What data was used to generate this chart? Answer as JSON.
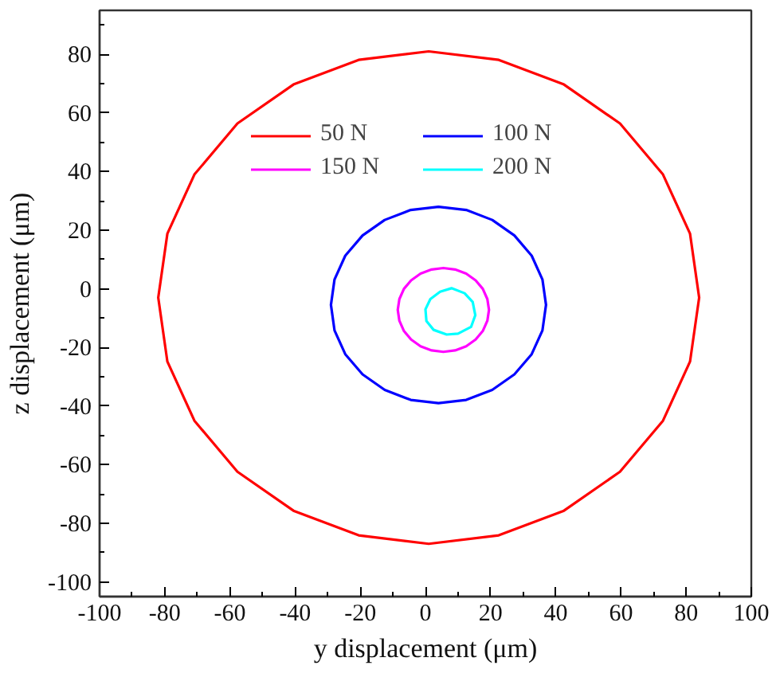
{
  "chart_data": {
    "type": "line",
    "xlabel": "y displacement (μm)",
    "ylabel": "z displacement (μm)",
    "xlim": [
      -100,
      100
    ],
    "ylim": [
      -105,
      95
    ],
    "xticks": [
      -100,
      {
        "value": -90,
        "label": null
      },
      -80,
      {
        "value": -70,
        "label": null
      },
      -60,
      {
        "value": -50,
        "label": null
      },
      -40,
      {
        "value": -30,
        "label": null
      },
      -20,
      {
        "value": -10,
        "label": null
      },
      0,
      {
        "value": 10,
        "label": null
      },
      20,
      {
        "value": 30,
        "label": null
      },
      40,
      {
        "value": 50,
        "label": null
      },
      60,
      {
        "value": 70,
        "label": null
      },
      80,
      {
        "value": 90,
        "label": null
      },
      100
    ],
    "yticks": [
      -100,
      {
        "value": -90,
        "label": null
      },
      -80,
      {
        "value": -70,
        "label": null
      },
      -60,
      {
        "value": -50,
        "label": null
      },
      -40,
      {
        "value": -30,
        "label": null
      },
      -20,
      {
        "value": -10,
        "label": null
      },
      0,
      {
        "value": 10,
        "label": null
      },
      20,
      {
        "value": 30,
        "label": null
      },
      40,
      {
        "value": 50,
        "label": null
      },
      60,
      {
        "value": 70,
        "label": null
      },
      80,
      {
        "value": 90,
        "label": null
      }
    ],
    "grid": false,
    "legend": "top",
    "line_style": "solid",
    "marker": "none",
    "series": [
      {
        "name": "50 N",
        "color": "#ff0000",
        "x": [
          84,
          81.2,
          72.9,
          59.7,
          42.5,
          22.5,
          1,
          -20.5,
          -40.5,
          -57.7,
          -70.9,
          -79.2,
          -82,
          -79.2,
          -70.9,
          -57.7,
          -40.5,
          -20.5,
          1,
          22.5,
          42.5,
          59.7,
          72.9,
          81.2,
          84,
          81.2
        ],
        "values": [
          -3,
          18.8,
          39,
          56.4,
          69.7,
          78.1,
          81,
          78.1,
          69.7,
          56.4,
          39,
          18.8,
          -3,
          -24.8,
          -45,
          -62.4,
          -75.7,
          -84.1,
          -87,
          -84.1,
          -75.7,
          -62.4,
          -45,
          -24.8,
          -3,
          18.8
        ]
      },
      {
        "name": "100 N",
        "color": "#0000ff",
        "x": [
          37,
          35.9,
          32.6,
          27.3,
          20.5,
          12.5,
          4,
          -4.5,
          -12.5,
          -19.3,
          -24.6,
          -27.9,
          -29,
          -27.9,
          -24.6,
          -19.3,
          -12.5,
          -4.5,
          4,
          12.5,
          20.5,
          27.3,
          32.6,
          35.9,
          37,
          35.9
        ],
        "values": [
          -5.5,
          3.2,
          11.3,
          18.2,
          23.5,
          26.9,
          28,
          26.9,
          23.5,
          18.2,
          11.3,
          3.2,
          -5.5,
          -14.2,
          -22.3,
          -29.2,
          -34.5,
          -37.9,
          -39,
          -37.9,
          -34.5,
          -29.2,
          -22.3,
          -14.2,
          -5.5,
          3.2
        ]
      },
      {
        "name": "150 N",
        "color": "#ff00ff",
        "x": [
          19.5,
          19,
          17.6,
          15.4,
          12.5,
          9.1,
          5.5,
          1.9,
          -1.5,
          -4.4,
          -6.6,
          -8,
          -8.5,
          -8,
          -6.6,
          -4.4,
          -1.5,
          1.9,
          5.5,
          9.1,
          12.5,
          15.4,
          17.6,
          19,
          19.5,
          19
        ],
        "values": [
          -7.2,
          -3.5,
          0,
          2.9,
          5.2,
          6.6,
          7.1,
          6.6,
          5.2,
          2.9,
          0,
          -3.5,
          -7.2,
          -10.9,
          -14.4,
          -17.3,
          -19.6,
          -21,
          -21.5,
          -21,
          -19.6,
          -17.3,
          -14.4,
          -10.9,
          -7.2,
          -3.5
        ]
      },
      {
        "name": "200 N",
        "color": "#00ffff",
        "x": [
          8,
          12,
          14.5,
          15.3,
          14,
          10,
          6.5,
          2.5,
          0.3,
          0,
          1.5,
          4.5,
          8,
          12
        ],
        "values": [
          0.2,
          -1.5,
          -4.5,
          -9,
          -13,
          -15.3,
          -15.6,
          -14,
          -11,
          -7,
          -3.5,
          -1,
          0.2,
          -1.5
        ]
      }
    ]
  }
}
